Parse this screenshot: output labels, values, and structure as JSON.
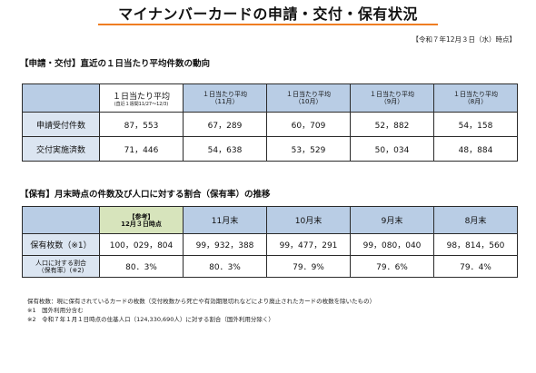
{
  "page": {
    "title": "マイナンバーカードの申請・交付・保有状況",
    "as_of": "【令和７年12月３日（水）時点】"
  },
  "section1": {
    "label": "【申請・交付】直近の１日当たり平均件数の動向",
    "columns": [
      {
        "line1": "１日当たり平均",
        "line2": "(直近１週間11/27～12/3)"
      },
      {
        "line1": "１日当たり平均",
        "line2": "（11月）"
      },
      {
        "line1": "１日当たり平均",
        "line2": "（10月）"
      },
      {
        "line1": "１日当たり平均",
        "line2": "（9月）"
      },
      {
        "line1": "１日当たり平均",
        "line2": "（8月）"
      }
    ],
    "rows": [
      {
        "label": "申請受付件数",
        "values": [
          "87，553",
          "67，289",
          "60，709",
          "52，882",
          "54，158"
        ]
      },
      {
        "label": "交付実施済数",
        "values": [
          "71，446",
          "54，638",
          "53，529",
          "50，034",
          "48，884"
        ]
      }
    ]
  },
  "section2": {
    "label": "【保有】月末時点の件数及び人口に対する割合（保有率）の推移",
    "columns": [
      {
        "line1": "【参考】",
        "line2": "12月３日時点"
      },
      {
        "line1": "11月末"
      },
      {
        "line1": "10月末"
      },
      {
        "line1": "9月末"
      },
      {
        "line1": "8月末"
      }
    ],
    "rows": [
      {
        "label": "保有枚数（※1）",
        "values": [
          "100，029，804",
          "99，932，388",
          "99，477，291",
          "99，080，040",
          "98，814，560"
        ]
      },
      {
        "label_line1": "人口に対する割合",
        "label_line2": "（保有率）(※2)",
        "values": [
          "80．3%",
          "80．3%",
          "79．9%",
          "79．6%",
          "79．4%"
        ]
      }
    ]
  },
  "notes": [
    "保有枚数：現に保有されているカードの枚数（交付枚数から死亡や有効期限切れなどにより廃止されたカードの枚数を除いたもの）",
    "※1　国外利用分含む",
    "※2　令和７年１月１日時点の住基人口（124,330,690人）に対する割合（国外利用分除く）"
  ]
}
